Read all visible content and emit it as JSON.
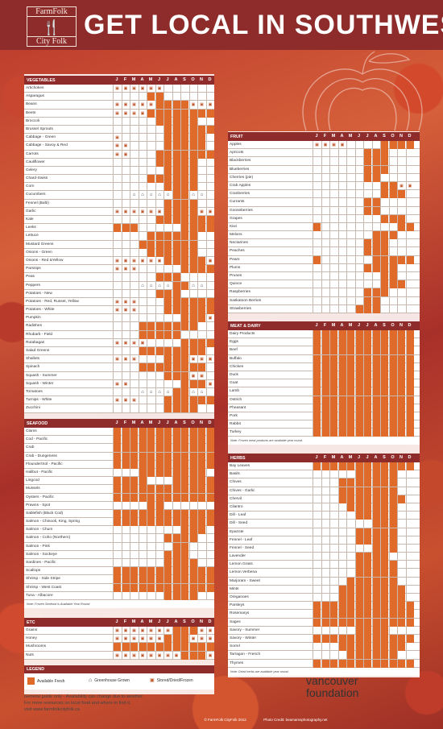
{
  "header": {
    "logo_top": "FarmFolk",
    "logo_bottom": "City Folk",
    "title": "GET LOCAL IN SOUTHWEST BC"
  },
  "months": [
    "J",
    "F",
    "M",
    "A",
    "M",
    "J",
    "J",
    "A",
    "S",
    "O",
    "N",
    "D"
  ],
  "colors": {
    "fresh": "#e06a2a",
    "header": "#8e2b2b"
  },
  "sections": {
    "vegetables": {
      "title": "VEGETABLES",
      "items": [
        {
          "name": "Artichokes",
          "m": "SSSSSS......"
        },
        {
          "name": "Asparagus",
          "m": "....FF......"
        },
        {
          "name": "Beans",
          "m": "SSSSSFFFFSSS"
        },
        {
          "name": "Beets",
          "m": "SSSSFFFFFFFF"
        },
        {
          "name": "Broccoli",
          "m": ".....FFFFF.."
        },
        {
          "name": "Brussel Sprouts",
          "m": "......FFFFFF"
        },
        {
          "name": "Cabbage - Green",
          "m": "S.....FFFFF."
        },
        {
          "name": "Cabbage - Savoy & Red",
          "m": "SS....FFFFF."
        },
        {
          "name": "Carrots",
          "m": "SS...FFFFFFF"
        },
        {
          "name": "Cauliflower",
          "m": ".....FFFFF.."
        },
        {
          "name": "Celery",
          "m": "......FFFF.."
        },
        {
          "name": "Chard-Swiss",
          "m": "....FFFFFF.."
        },
        {
          "name": "Corn",
          "m": "......FFFF.."
        },
        {
          "name": "Cucumbers",
          "m": "..GGGGGFFGG."
        },
        {
          "name": "Fennel (Bulb)",
          "m": "......FFFF.."
        },
        {
          "name": "Garlic",
          "m": "SSSSSSFFFFSS"
        },
        {
          "name": "Kale",
          "m": ".....FFFFFFF"
        },
        {
          "name": "Leeks",
          "m": "FFF.....FFFF"
        },
        {
          "name": "Lettuce",
          "m": "....FFFFFF.."
        },
        {
          "name": "Mustard Greens",
          "m": "...FFFFFFF.."
        },
        {
          "name": "Onions - Green",
          "m": "....FFFFFF.."
        },
        {
          "name": "Onions - Red &Yellow",
          "m": "SSSSSSFFFFFS"
        },
        {
          "name": "Parsnips",
          "m": "SSS.....FFFF"
        },
        {
          "name": "Peas",
          "m": ".....FFF...."
        },
        {
          "name": "Peppers",
          "m": "...GGGGFFGG."
        },
        {
          "name": "Potatoes - New",
          "m": ".....FFF...."
        },
        {
          "name": "Potatoes - Red, Russet, Yellow",
          "m": "SSS...FFFFFF"
        },
        {
          "name": "Potatoes - White",
          "m": "SSS...FFFFFF"
        },
        {
          "name": "Pumpkin",
          "m": "........FFFS"
        },
        {
          "name": "Radishes",
          "m": "...FFFFFFF.."
        },
        {
          "name": "Rhubarb - Field",
          "m": "...FFFFF...."
        },
        {
          "name": "Rutabagas",
          "m": "SSSS....FFFF"
        },
        {
          "name": "Salad Greens",
          "m": "...FFFFFFFF."
        },
        {
          "name": "Shallots",
          "m": "SSS...FFFSSS"
        },
        {
          "name": "Spinach",
          "m": "...FFFFFFFF."
        },
        {
          "name": "Squash - Summer",
          "m": "......FFFSS."
        },
        {
          "name": "Squash - Winter",
          "m": "SS......FFFS"
        },
        {
          "name": "Tomatoes",
          "m": "...GGGGFFGG."
        },
        {
          "name": "Turnips - White",
          "m": "SSS...FFFFFF"
        },
        {
          "name": "Zucchini",
          "m": "......FFFF.."
        }
      ]
    },
    "fruit": {
      "title": "FRUIT",
      "items": [
        {
          "name": "Apples",
          "m": "SSSS....FFFF"
        },
        {
          "name": "Apricots",
          "m": "......FFF..."
        },
        {
          "name": "Blackberries",
          "m": "......FFF..."
        },
        {
          "name": "Blueberries",
          "m": "......FFF..."
        },
        {
          "name": "Cherries (pie)",
          "m": "......FF...."
        },
        {
          "name": "Crab Apples",
          "m": "........FFSS"
        },
        {
          "name": "Cranberries",
          "m": "........FFF."
        },
        {
          "name": "Currants",
          "m": "......FF...."
        },
        {
          "name": "Gooseberries",
          "m": "......FF...."
        },
        {
          "name": "Grapes",
          "m": "........FFF."
        },
        {
          "name": "Kiwi",
          "m": "F.........FF"
        },
        {
          "name": "Melons",
          "m": ".......FFF.."
        },
        {
          "name": "Nectarines",
          "m": "......FFF..."
        },
        {
          "name": "Peaches",
          "m": "......FFF..."
        },
        {
          "name": "Pears",
          "m": "F......FFFFF"
        },
        {
          "name": "Plums",
          "m": "......FFFF.."
        },
        {
          "name": "Prunes",
          "m": "........FF.."
        },
        {
          "name": "Quince",
          "m": "........FFF."
        },
        {
          "name": "Raspberries",
          "m": "......FFF..."
        },
        {
          "name": "Saskatoon Berries",
          "m": "......FF...."
        },
        {
          "name": "Strawberries",
          "m": ".....FFF...."
        }
      ]
    },
    "meat": {
      "title": "MEAT & DAIRY",
      "note": "Note: Frozen meat products are available year round.",
      "items": [
        {
          "name": "Dairy Products",
          "m": "FFFFFFFFFFFF"
        },
        {
          "name": "Eggs",
          "m": "FFFFFFFFFFFF"
        },
        {
          "name": "Beef",
          "m": "FFFFFFFFFFFF"
        },
        {
          "name": "Buffalo",
          "m": "FFFFFFFFFFFF"
        },
        {
          "name": "Chicken",
          "m": "FFFFFFFFFFFF"
        },
        {
          "name": "Duck",
          "m": "FFFFFFFFFFFF"
        },
        {
          "name": "Goat",
          "m": "FFFFFFFFFFFF"
        },
        {
          "name": "Lamb",
          "m": "FFFFFFFFFFFF"
        },
        {
          "name": "Ostrich",
          "m": "FFFFFFFFFFFF"
        },
        {
          "name": "Pheasant",
          "m": "FFFFFFFFFFFF"
        },
        {
          "name": "Pork",
          "m": "FFFFFFFFFFFF"
        },
        {
          "name": "Rabbit",
          "m": "FFFFFFFFFFFF"
        },
        {
          "name": "Turkey",
          "m": "FFFFFFFFFFFF"
        }
      ]
    },
    "seafood": {
      "title": "SEAFOOD",
      "note": "Note: Frozen Seafood is Available Year Round.",
      "items": [
        {
          "name": "Clams",
          "m": "FFFFFFFFFFFF"
        },
        {
          "name": "Cod - Pacific",
          "m": "FFFFFFFFFFFF"
        },
        {
          "name": "Crab",
          "m": "FFFFFFFFFFFF"
        },
        {
          "name": "Crab - Dungeness",
          "m": "FFFFFFFFFFFF"
        },
        {
          "name": "Flounder/Sol - Pacific",
          "m": "FFFFFFFFFFFF"
        },
        {
          "name": "Halibut - Pacific",
          "m": "...FFFFFFFF."
        },
        {
          "name": "Lingcod",
          "m": "FFFF...FFFFF"
        },
        {
          "name": "Mussels",
          "m": "FFFFFFFFFFFF"
        },
        {
          "name": "Oysters - Pacific",
          "m": "FFFFFFFFFFFF"
        },
        {
          "name": "Prawns - Spot",
          "m": "....FF......"
        },
        {
          "name": "Sablefish (Black Cod)",
          "m": "FFFFFFFFFFFF"
        },
        {
          "name": "Salmon - Chinook, King, Spring",
          "m": "FFFFFFFFFFFF"
        },
        {
          "name": "Salmon - Chum",
          "m": "........FFF."
        },
        {
          "name": "Salmon - Coho (Northern)",
          "m": "......FFFF.."
        },
        {
          "name": "Salmon - Pink",
          "m": ".......FF..."
        },
        {
          "name": "Salmon - Sockeye",
          "m": "......FFF..."
        },
        {
          "name": "Sardines - Pacific",
          "m": "......FFFF.."
        },
        {
          "name": "Scallops",
          "m": "FFFFFFFFFFFF"
        },
        {
          "name": "Shrimp - Side Stripe",
          "m": "FFFFFFFFFFFF"
        },
        {
          "name": "Shrimp - West Coast",
          "m": "FFFFFFFFFFFF"
        },
        {
          "name": "Tuna - Albacore",
          "m": "......FFFF.."
        }
      ]
    },
    "herbs": {
      "title": "HERBS",
      "note": "Note: Dried herbs are available year round.",
      "items": [
        {
          "name": "Bay Leaves",
          "m": "FFFFFFFFFFFF"
        },
        {
          "name": "Basils",
          "m": ".....FFFFF.."
        },
        {
          "name": "Chives",
          "m": "...FFFFFFF.."
        },
        {
          "name": "Chives - Garlic",
          "m": "...FFFFFFF.."
        },
        {
          "name": "Chervil",
          "m": "...FFFFFFFF."
        },
        {
          "name": "Cilantro",
          "m": "....FFFFFF.."
        },
        {
          "name": "Dill - Leaf",
          "m": ".....FFFFF.."
        },
        {
          "name": "Dill - Seed",
          "m": ".......FFF.."
        },
        {
          "name": "Epazote",
          "m": ".....FFFFF.."
        },
        {
          "name": "Fennel - Leaf",
          "m": ".....FFFFF.."
        },
        {
          "name": "Fennel - Seed",
          "m": ".......FFF.."
        },
        {
          "name": "Lavender",
          "m": ".....FFFF..."
        },
        {
          "name": "Lemon Grass",
          "m": ".....FFFFF.."
        },
        {
          "name": "Lemon Verbena",
          "m": ".....FFFFF.."
        },
        {
          "name": "Marjoram - Sweet",
          "m": "....FFFFFF.."
        },
        {
          "name": "Mints",
          "m": "...FFFFFFFF."
        },
        {
          "name": "Oreganoes",
          "m": "...FFFFFFFF."
        },
        {
          "name": "Parsleys",
          "m": "FFFFFFFFFFFF"
        },
        {
          "name": "Rosemarys",
          "m": "FFFFFFFFFFFF"
        },
        {
          "name": "Sages",
          "m": "FFFFFFFFFFFF"
        },
        {
          "name": "Savory - Summer",
          "m": ".....FFFF..."
        },
        {
          "name": "Savory - Winter",
          "m": "FFFFFFFFFFFF"
        },
        {
          "name": "Sorrel",
          "m": "...FFFFFFFF."
        },
        {
          "name": "Tarragon - French",
          "m": "....FFFFFF.."
        },
        {
          "name": "Thymes",
          "m": "FFFFFFFFFFFF"
        }
      ]
    },
    "etc": {
      "title": "ETC",
      "items": [
        {
          "name": "Grains",
          "m": "SSSSSSSFFFSS"
        },
        {
          "name": "Honey",
          "m": "SSSSSSFFFSSS"
        },
        {
          "name": "Mushrooms",
          "m": "FFFFFFFFFFFF"
        },
        {
          "name": "Nuts",
          "m": "SSSSSSSSFFFS"
        }
      ]
    }
  },
  "legend": {
    "title": "LEGEND",
    "fresh": "Available Fresh",
    "greenhouse": "Greenhouse Grown",
    "stored": "Stored/Dried/Frozen"
  },
  "footer": {
    "line1": "General guide only - Availability can change due to weather.",
    "line2": "For more resources on local food and where to find it,",
    "line3": "visit www.farmfolkcityfolk.ca"
  },
  "foundation": {
    "line1": "vancouver",
    "line2": "foundation"
  },
  "credits": {
    "copyright": "© FarmFolk CityFolk 2012",
    "photo": "Photo Credit: beamamsphotography.net"
  }
}
